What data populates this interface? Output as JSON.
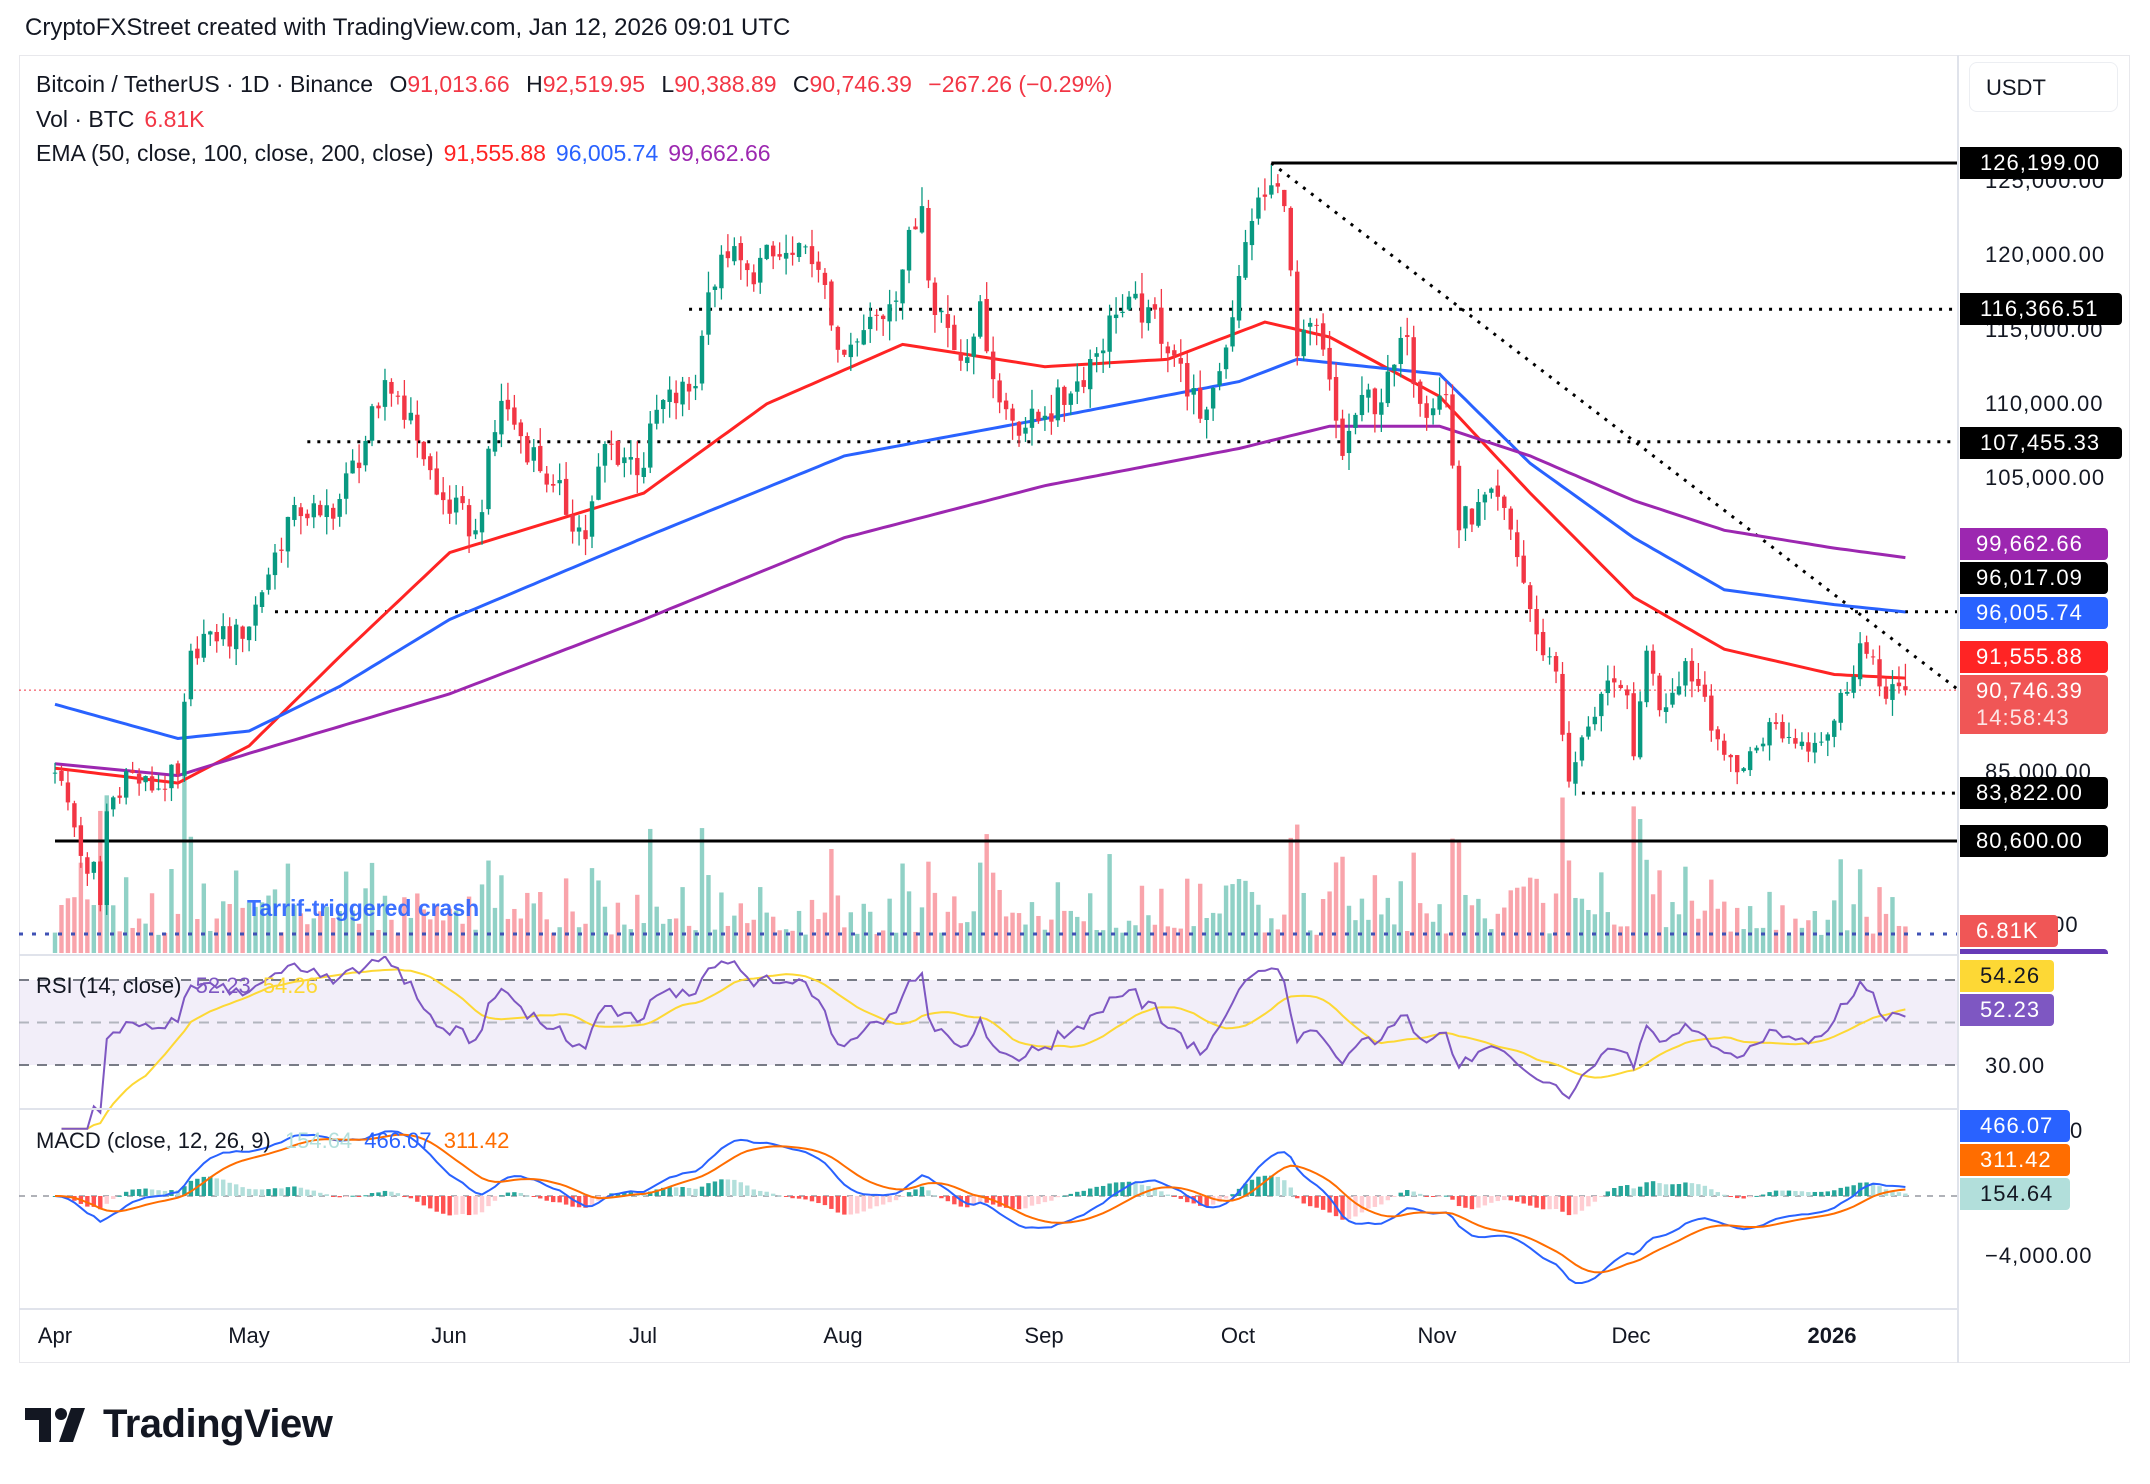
{
  "header": {
    "title": "CryptoFXStreet created with TradingView.com, Jan 12, 2026 09:01 UTC"
  },
  "legend": {
    "symbol": "Bitcoin / TetherUS · 1D · Binance",
    "open_label": "O",
    "open": "91,013.66",
    "high_label": "H",
    "high": "92,519.95",
    "low_label": "L",
    "low": "90,388.89",
    "close_label": "C",
    "close": "90,746.39",
    "change": "−267.26 (−0.29%)",
    "vol_label": "Vol · BTC",
    "vol": "6.81K",
    "ema_label": "EMA (50, close, 100, close, 200, close)",
    "ema50": "91,555.88",
    "ema100": "96,005.74",
    "ema200": "99,662.66"
  },
  "price_axis": {
    "currency": "USDT",
    "ticks": [
      "125,000.00",
      "120,000.00",
      "115,000.00",
      "110,000.00",
      "105,000.00",
      "85,000.00",
      ".00"
    ],
    "labels": {
      "level_high": "126,199.00",
      "level_116k": "116,366.51",
      "level_107k": "107,455.33",
      "ema200": "99,662.66",
      "level_96k": "96,017.09",
      "ema100": "96,005.74",
      "ema50": "91,555.88",
      "last_price": "90,746.39",
      "countdown": "14:58:43",
      "level_83k": "83,822.00",
      "level_80k": "80,600.00",
      "volume": "6.81K"
    }
  },
  "annotation": "Tarrif-triggered crash",
  "rsi": {
    "label": "RSI (14, close)",
    "value": "52.23",
    "ma": "54.26",
    "tick_30": "30.00",
    "levels": [
      70,
      50,
      30
    ]
  },
  "macd": {
    "label": "MACD (close, 12, 26, 9)",
    "histogram": "154.64",
    "macd": "466.07",
    "signal": "311.42",
    "tick_0": "0",
    "tick_neg4000": "−4,000.00"
  },
  "time_axis": [
    "Apr",
    "May",
    "Jun",
    "Jul",
    "Aug",
    "Sep",
    "Oct",
    "Nov",
    "Dec",
    "2026"
  ],
  "brand": "TradingView",
  "colors": {
    "up": "#089981",
    "down": "#f23645",
    "ema50": "#ff2424",
    "ema100": "#2962ff",
    "ema200": "#9c27b0",
    "rsi": "#7e57c2",
    "rsi_ma": "#fdd835",
    "macd": "#2962ff",
    "signal": "#ff6d00"
  },
  "chart_data": {
    "type": "candlestick",
    "symbol": "BTCUSDT",
    "interval": "1D",
    "ylim": [
      72000,
      128000
    ],
    "last_bar": {
      "date": "2026-01-12",
      "open": 91013.66,
      "high": 92519.95,
      "low": 90388.89,
      "close": 90746.39
    },
    "approx_closes": [
      [
        "2025-04-01",
        85200
      ],
      [
        "2025-04-03",
        83200
      ],
      [
        "2025-04-06",
        78400
      ],
      [
        "2025-04-07",
        79200
      ],
      [
        "2025-04-08",
        76300
      ],
      [
        "2025-04-09",
        82600
      ],
      [
        "2025-04-12",
        85300
      ],
      [
        "2025-04-16",
        84000
      ],
      [
        "2025-04-20",
        85100
      ],
      [
        "2025-04-22",
        93400
      ],
      [
        "2025-04-25",
        94700
      ],
      [
        "2025-04-30",
        94200
      ],
      [
        "2025-05-02",
        96500
      ],
      [
        "2025-05-08",
        103200
      ],
      [
        "2025-05-12",
        102500
      ],
      [
        "2025-05-15",
        103600
      ],
      [
        "2025-05-21",
        109700
      ],
      [
        "2025-05-22",
        111600
      ],
      [
        "2025-05-26",
        109400
      ],
      [
        "2025-05-30",
        103900
      ],
      [
        "2025-06-05",
        101500
      ],
      [
        "2025-06-09",
        110200
      ],
      [
        "2025-06-11",
        108600
      ],
      [
        "2025-06-17",
        104500
      ],
      [
        "2025-06-22",
        100900
      ],
      [
        "2025-06-25",
        107300
      ],
      [
        "2025-07-01",
        105700
      ],
      [
        "2025-07-03",
        109600
      ],
      [
        "2025-07-09",
        111200
      ],
      [
        "2025-07-11",
        117500
      ],
      [
        "2025-07-14",
        119800
      ],
      [
        "2025-07-17",
        119000
      ],
      [
        "2025-07-22",
        119900
      ],
      [
        "2025-07-27",
        119400
      ],
      [
        "2025-08-01",
        113300
      ],
      [
        "2025-08-03",
        114200
      ],
      [
        "2025-08-08",
        116700
      ],
      [
        "2025-08-13",
        123300
      ],
      [
        "2025-08-14",
        118300
      ],
      [
        "2025-08-19",
        112900
      ],
      [
        "2025-08-22",
        116900
      ],
      [
        "2025-08-25",
        110100
      ],
      [
        "2025-08-29",
        108400
      ],
      [
        "2025-09-01",
        109200
      ],
      [
        "2025-09-05",
        110700
      ],
      [
        "2025-09-12",
        116000
      ],
      [
        "2025-09-17",
        116500
      ],
      [
        "2025-09-22",
        112700
      ],
      [
        "2025-09-25",
        109000
      ],
      [
        "2025-09-28",
        112200
      ],
      [
        "2025-10-01",
        118600
      ],
      [
        "2025-10-03",
        122300
      ],
      [
        "2025-10-06",
        124700
      ],
      [
        "2025-10-08",
        123300
      ],
      [
        "2025-10-10",
        113200
      ],
      [
        "2025-10-13",
        115300
      ],
      [
        "2025-10-17",
        106500
      ],
      [
        "2025-10-20",
        110600
      ],
      [
        "2025-10-23",
        110100
      ],
      [
        "2025-10-27",
        114500
      ],
      [
        "2025-10-29",
        110000
      ],
      [
        "2025-11-02",
        110600
      ],
      [
        "2025-11-04",
        101500
      ],
      [
        "2025-11-07",
        103400
      ],
      [
        "2025-11-11",
        103000
      ],
      [
        "2025-11-13",
        99700
      ],
      [
        "2025-11-16",
        94500
      ],
      [
        "2025-11-19",
        92000
      ],
      [
        "2025-11-21",
        84600
      ],
      [
        "2025-11-24",
        88300
      ],
      [
        "2025-11-26",
        90500
      ],
      [
        "2025-11-30",
        90400
      ],
      [
        "2025-12-01",
        86300
      ],
      [
        "2025-12-03",
        93400
      ],
      [
        "2025-12-05",
        89400
      ],
      [
        "2025-12-09",
        92700
      ],
      [
        "2025-12-12",
        90300
      ],
      [
        "2025-12-15",
        86400
      ],
      [
        "2025-12-18",
        85500
      ],
      [
        "2025-12-22",
        88600
      ],
      [
        "2025-12-25",
        87600
      ],
      [
        "2025-12-29",
        87200
      ],
      [
        "2026-01-01",
        88700
      ],
      [
        "2026-01-05",
        93900
      ],
      [
        "2026-01-08",
        91000
      ],
      [
        "2026-01-11",
        91013.66
      ],
      [
        "2026-01-12",
        90746.39
      ]
    ],
    "extreme_wicks": [
      [
        "2025-10-06",
        "high",
        126199
      ],
      [
        "2025-10-10",
        "low",
        102000
      ],
      [
        "2025-11-21",
        "low",
        80600
      ],
      [
        "2025-04-07",
        "low",
        74500
      ]
    ],
    "ema_series": {
      "ema50": [
        [
          "2025-04-01",
          85500
        ],
        [
          "2025-04-20",
          84500
        ],
        [
          "2025-05-01",
          87000
        ],
        [
          "2025-05-15",
          93000
        ],
        [
          "2025-06-01",
          100000
        ],
        [
          "2025-07-01",
          104000
        ],
        [
          "2025-07-20",
          110000
        ],
        [
          "2025-08-10",
          114000
        ],
        [
          "2025-09-01",
          112500
        ],
        [
          "2025-09-20",
          113000
        ],
        [
          "2025-10-05",
          115500
        ],
        [
          "2025-10-15",
          114500
        ],
        [
          "2025-11-01",
          110500
        ],
        [
          "2025-11-15",
          104000
        ],
        [
          "2025-12-01",
          97000
        ],
        [
          "2025-12-15",
          93500
        ],
        [
          "2026-01-01",
          91800
        ],
        [
          "2026-01-12",
          91555.88
        ]
      ],
      "ema100": [
        [
          "2025-04-01",
          89800
        ],
        [
          "2025-04-20",
          87500
        ],
        [
          "2025-05-01",
          88000
        ],
        [
          "2025-05-15",
          91000
        ],
        [
          "2025-06-01",
          95500
        ],
        [
          "2025-07-01",
          101000
        ],
        [
          "2025-08-01",
          106500
        ],
        [
          "2025-09-01",
          109000
        ],
        [
          "2025-10-01",
          111500
        ],
        [
          "2025-10-10",
          113000
        ],
        [
          "2025-11-01",
          112000
        ],
        [
          "2025-11-15",
          106000
        ],
        [
          "2025-12-01",
          101000
        ],
        [
          "2025-12-15",
          97500
        ],
        [
          "2026-01-01",
          96500
        ],
        [
          "2026-01-12",
          96005.74
        ]
      ],
      "ema200": [
        [
          "2025-04-01",
          85800
        ],
        [
          "2025-04-20",
          85000
        ],
        [
          "2025-05-01",
          86500
        ],
        [
          "2025-06-01",
          90500
        ],
        [
          "2025-07-01",
          95500
        ],
        [
          "2025-08-01",
          101000
        ],
        [
          "2025-09-01",
          104500
        ],
        [
          "2025-10-01",
          107000
        ],
        [
          "2025-10-15",
          108500
        ],
        [
          "2025-11-01",
          108500
        ],
        [
          "2025-11-15",
          106500
        ],
        [
          "2025-12-01",
          103500
        ],
        [
          "2025-12-15",
          101500
        ],
        [
          "2026-01-01",
          100300
        ],
        [
          "2026-01-12",
          99662.66
        ]
      ]
    },
    "horizontal_levels": [
      {
        "price": 126199,
        "style": "solid",
        "from": "2025-10-06"
      },
      {
        "price": 116366.51,
        "style": "dotted",
        "from": "2025-07-08"
      },
      {
        "price": 107455.33,
        "style": "dotted",
        "from": "2025-05-10"
      },
      {
        "price": 96017.09,
        "style": "dotted",
        "from": "2025-05-05"
      },
      {
        "price": 83822,
        "style": "dotted",
        "from": "2025-11-23"
      },
      {
        "price": 80600,
        "style": "solid",
        "from": "2025-04-01"
      }
    ],
    "trendline": {
      "style": "dotted",
      "from": [
        "2025-10-06",
        126199
      ],
      "to": [
        "2026-01-21",
        90500
      ]
    }
  }
}
